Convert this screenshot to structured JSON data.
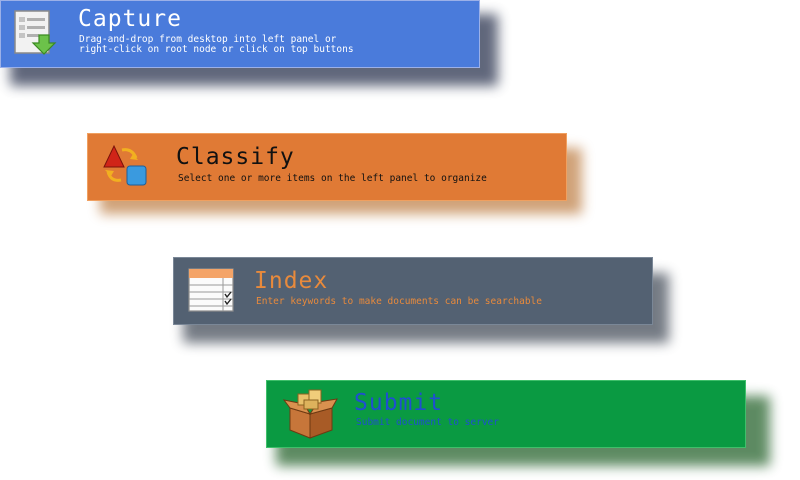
{
  "colors": {
    "capture_bg": "#4a7bdb",
    "classify_bg": "#e07a35",
    "index_bg": "#536172",
    "submit_bg": "#0a9a42",
    "index_text": "#e88a3c",
    "submit_text": "#1f4fd0"
  },
  "steps": {
    "capture": {
      "icon": "document-download-icon",
      "title": "Capture",
      "desc_line1": "Drag-and-drop from desktop into left panel or",
      "desc_line2": "right-click on root node or click on top buttons"
    },
    "classify": {
      "icon": "shapes-classify-icon",
      "title": "Classify",
      "desc_line1": "Select one or more items on the left panel to organize"
    },
    "index": {
      "icon": "checklist-index-icon",
      "title": "Index",
      "desc_line1": "Enter keywords to make documents can be searchable"
    },
    "submit": {
      "icon": "open-box-submit-icon",
      "title": "Submit",
      "desc_line1": "Submit document to server"
    }
  }
}
